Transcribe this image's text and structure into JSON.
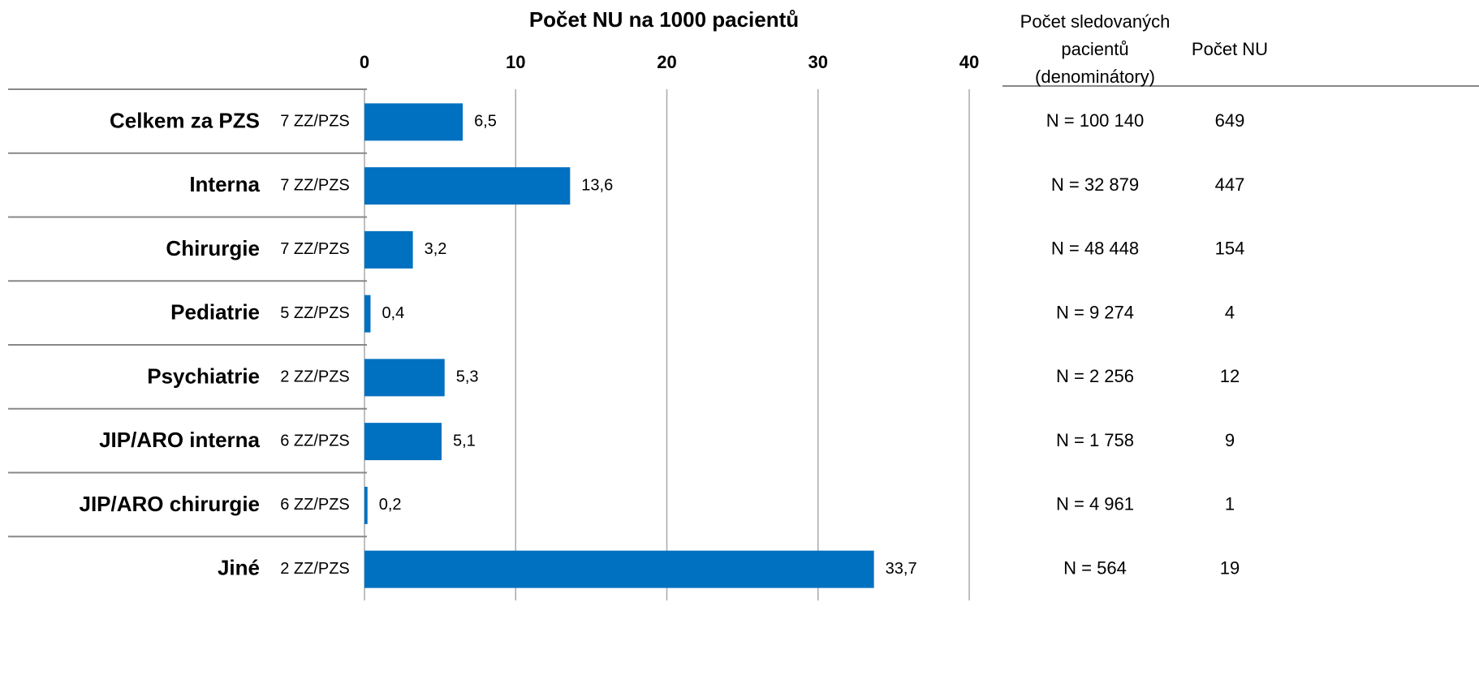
{
  "chart_data": {
    "type": "bar",
    "orientation": "horizontal",
    "title": "Počet NU na 1000 pacientů",
    "categories": [
      "Celkem za PZS",
      "Interna",
      "Chirurgie",
      "Pediatrie",
      "Psychiatrie",
      "JIP/ARO interna",
      "JIP/ARO chirurgie",
      "Jiné"
    ],
    "sublabels": [
      "7 ZZ/PZS",
      "7 ZZ/PZS",
      "7 ZZ/PZS",
      "5 ZZ/PZS",
      "2 ZZ/PZS",
      "6 ZZ/PZS",
      "6 ZZ/PZS",
      "2 ZZ/PZS"
    ],
    "values": [
      6.5,
      13.6,
      3.2,
      0.4,
      5.3,
      5.1,
      0.2,
      33.7
    ],
    "value_labels": [
      "6,5",
      "13,6",
      "3,2",
      "0,4",
      "5,3",
      "5,1",
      "0,2",
      "33,7"
    ],
    "color": "#0070c0",
    "xlim": [
      0,
      40
    ],
    "xticks": [
      0,
      10,
      20,
      30,
      40
    ],
    "grid": true,
    "table": {
      "denominator_header": [
        "Počet sledovaných",
        "pacientů",
        "(denominátory)"
      ],
      "count_header": "Počet NU",
      "denominators": [
        "N = 100 140",
        "N = 32 879",
        "N = 48 448",
        "N = 9 274",
        "N = 2 256",
        "N = 1 758",
        "N = 4 961",
        "N = 564"
      ],
      "counts": [
        649,
        447,
        154,
        4,
        12,
        9,
        1,
        19
      ]
    }
  }
}
